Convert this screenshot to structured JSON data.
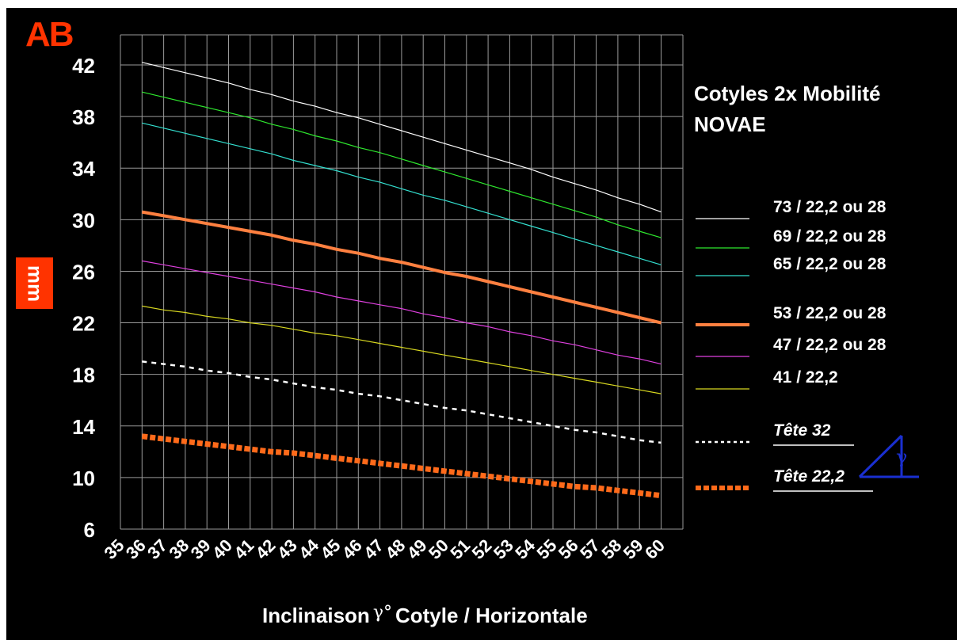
{
  "corner_label": "AB",
  "unit_label": "mm",
  "title_lines": [
    "Cotyles 2x Mobilité",
    "NOVAE"
  ],
  "x_axis_title": {
    "prefix": "Inclinaison",
    "symbol": "γ°",
    "suffix": "Cotyle / Horizontale"
  },
  "inset_symbol": "γ",
  "colors": {
    "background": "#000000",
    "grid": "#9a9a9a",
    "accent": "#ff3300",
    "inset": "#1a2fd0"
  },
  "chart_data": {
    "type": "line",
    "x": [
      36,
      37,
      38,
      39,
      40,
      41,
      42,
      43,
      44,
      45,
      46,
      47,
      48,
      49,
      50,
      51,
      52,
      53,
      54,
      55,
      56,
      57,
      58,
      59,
      60
    ],
    "x_tick_labels": [
      "35",
      "36",
      "37",
      "38",
      "39",
      "40",
      "41",
      "42",
      "43",
      "44",
      "45",
      "46",
      "47",
      "48",
      "49",
      "50",
      "51",
      "52",
      "53",
      "54",
      "55",
      "56",
      "57",
      "58",
      "59",
      "60"
    ],
    "ylim": [
      6,
      42
    ],
    "y_ticks": [
      6,
      10,
      14,
      18,
      22,
      26,
      30,
      34,
      38,
      42
    ],
    "grid": true,
    "legend_position": "right",
    "series": [
      {
        "name": "73 / 22,2 ou 28",
        "color": "#ffffff",
        "style": "solid",
        "width": 1.2,
        "values": [
          42.2,
          41.8,
          41.4,
          41.0,
          40.6,
          40.1,
          39.7,
          39.2,
          38.8,
          38.3,
          37.9,
          37.4,
          36.9,
          36.4,
          35.9,
          35.4,
          34.9,
          34.4,
          33.9,
          33.3,
          32.8,
          32.3,
          31.7,
          31.2,
          30.6
        ]
      },
      {
        "name": "69 / 22,2 ou 28",
        "color": "#2ee82e",
        "style": "solid",
        "width": 1.2,
        "values": [
          39.9,
          39.5,
          39.1,
          38.7,
          38.3,
          37.9,
          37.4,
          37.0,
          36.5,
          36.1,
          35.6,
          35.2,
          34.7,
          34.2,
          33.7,
          33.2,
          32.7,
          32.2,
          31.7,
          31.2,
          30.7,
          30.2,
          29.6,
          29.1,
          28.6
        ]
      },
      {
        "name": "65 / 22,2 ou 28",
        "color": "#33e0d0",
        "style": "solid",
        "width": 1.2,
        "values": [
          37.5,
          37.1,
          36.7,
          36.3,
          35.9,
          35.5,
          35.1,
          34.6,
          34.2,
          33.8,
          33.3,
          32.9,
          32.4,
          31.9,
          31.5,
          31.0,
          30.5,
          30.0,
          29.5,
          29.0,
          28.5,
          28.0,
          27.5,
          27.0,
          26.5
        ]
      },
      {
        "name": "53 / 22,2 ou 28",
        "color": "#ff8040",
        "style": "solid",
        "width": 4,
        "values": [
          30.6,
          30.3,
          30.0,
          29.7,
          29.4,
          29.1,
          28.8,
          28.4,
          28.1,
          27.7,
          27.4,
          27.0,
          26.7,
          26.3,
          25.9,
          25.6,
          25.2,
          24.8,
          24.4,
          24.0,
          23.6,
          23.2,
          22.8,
          22.4,
          22.0
        ]
      },
      {
        "name": "47 / 22,2 ou 28",
        "color": "#e040e0",
        "style": "solid",
        "width": 1.2,
        "values": [
          26.8,
          26.5,
          26.2,
          25.9,
          25.6,
          25.3,
          25.0,
          24.7,
          24.4,
          24.0,
          23.7,
          23.4,
          23.1,
          22.7,
          22.4,
          22.0,
          21.7,
          21.3,
          21.0,
          20.6,
          20.3,
          19.9,
          19.5,
          19.2,
          18.8
        ]
      },
      {
        "name": "41 / 22,2",
        "color": "#d8d820",
        "style": "solid",
        "width": 1.2,
        "values": [
          23.3,
          23.0,
          22.8,
          22.5,
          22.3,
          22.0,
          21.8,
          21.5,
          21.2,
          21.0,
          20.7,
          20.4,
          20.1,
          19.8,
          19.5,
          19.2,
          18.9,
          18.6,
          18.3,
          18.0,
          17.7,
          17.4,
          17.1,
          16.8,
          16.5
        ]
      },
      {
        "name": "Tête 32",
        "color": "#ffffff",
        "style": "dashed",
        "width": 2.5,
        "values": [
          19.0,
          18.8,
          18.6,
          18.3,
          18.1,
          17.8,
          17.6,
          17.3,
          17.0,
          16.8,
          16.5,
          16.3,
          16.0,
          15.7,
          15.4,
          15.2,
          14.9,
          14.6,
          14.3,
          14.0,
          13.7,
          13.5,
          13.2,
          12.9,
          12.7
        ]
      },
      {
        "name": "Tête 22,2",
        "color": "#ff6a1a",
        "style": "dashed",
        "width": 7,
        "values": [
          13.2,
          13.0,
          12.8,
          12.6,
          12.4,
          12.2,
          12.0,
          11.9,
          11.7,
          11.5,
          11.3,
          11.1,
          10.9,
          10.7,
          10.5,
          10.3,
          10.1,
          9.9,
          9.7,
          9.5,
          9.3,
          9.2,
          9.0,
          8.8,
          8.6
        ]
      }
    ]
  }
}
